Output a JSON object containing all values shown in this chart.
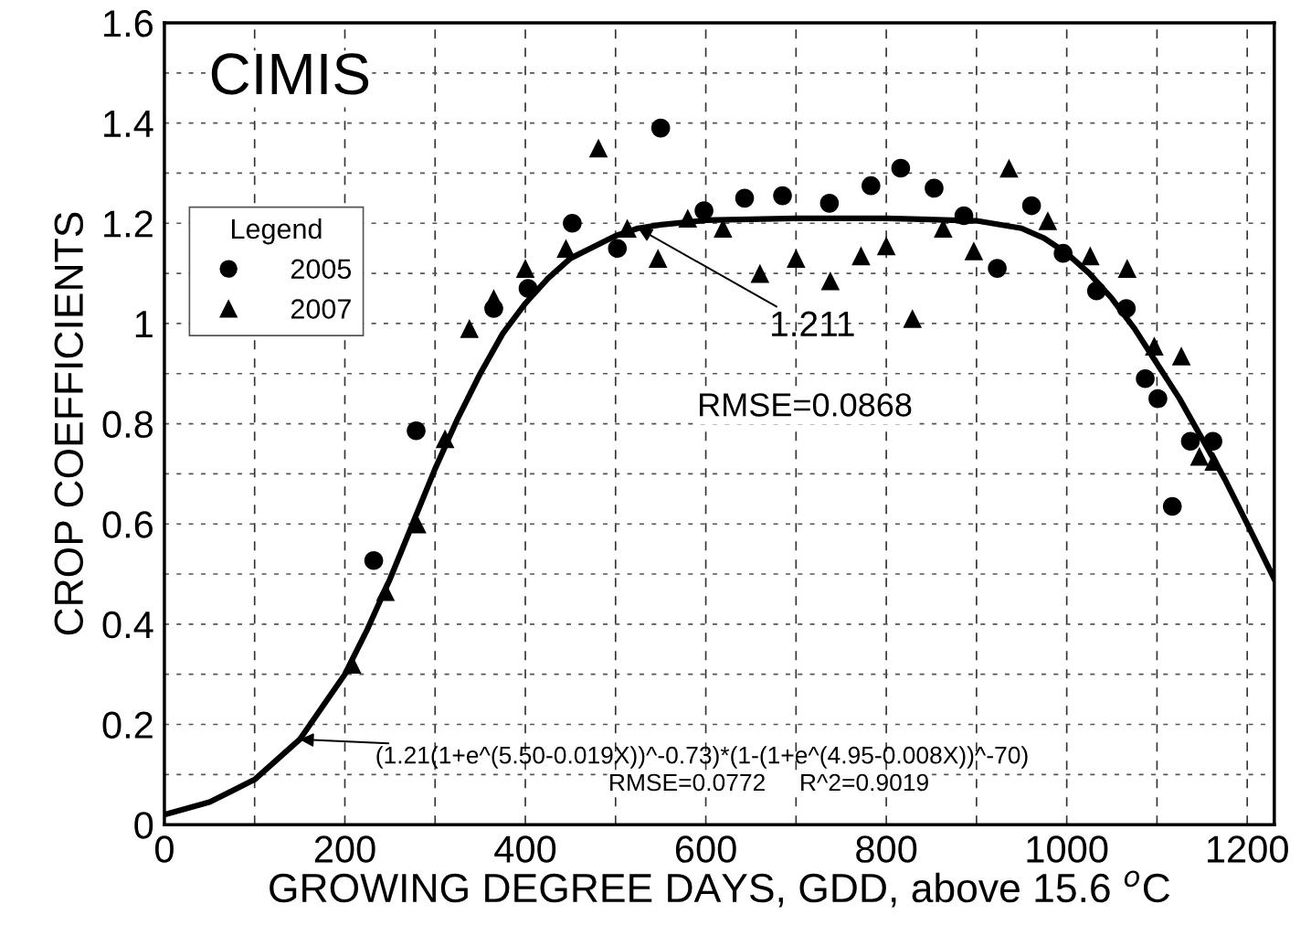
{
  "chart_data": {
    "type": "scatter",
    "xlabel": "GROWING DEGREE DAYS, GDD, above 15.6 $^{o}$C",
    "ylabel": "CROP COEFFICIENTS",
    "legend_title": "Legend",
    "xlim": [
      0,
      1230
    ],
    "ylim": [
      0,
      1.6
    ],
    "xticks": [
      0,
      {
        "value": 100,
        "label": null
      },
      200,
      {
        "value": 300,
        "label": null
      },
      400,
      {
        "value": 500,
        "label": null
      },
      600,
      {
        "value": 700,
        "label": null
      },
      800,
      {
        "value": 900,
        "label": null
      },
      1000,
      {
        "value": 1100,
        "label": null
      },
      1200
    ],
    "yticks": [
      0,
      {
        "value": 0.1,
        "label": null
      },
      0.2,
      {
        "value": 0.3,
        "label": null
      },
      0.4,
      {
        "value": 0.5,
        "label": null
      },
      0.6,
      {
        "value": 0.7,
        "label": null
      },
      0.8,
      {
        "value": 0.9,
        "label": null
      },
      1,
      {
        "value": 1.1,
        "label": null
      },
      1.2,
      {
        "value": 1.3,
        "label": null
      },
      1.4,
      {
        "value": 1.5,
        "label": null
      },
      1.6
    ],
    "grid": true,
    "legend": "left",
    "series": [
      {
        "name": "2005",
        "marker": "circle",
        "color": "#000000",
        "x": [
          232,
          279,
          365,
          403,
          452,
          502,
          550,
          598,
          643,
          685,
          737,
          783,
          816,
          853,
          886,
          923,
          961,
          996,
          1033,
          1066,
          1087,
          1101,
          1117,
          1137,
          1162
        ],
        "values": [
          0.527,
          0.786,
          1.03,
          1.07,
          1.2,
          1.15,
          1.39,
          1.225,
          1.25,
          1.255,
          1.24,
          1.275,
          1.31,
          1.27,
          1.215,
          1.11,
          1.235,
          1.14,
          1.065,
          1.03,
          0.89,
          0.85,
          0.635,
          0.765,
          0.765
        ]
      },
      {
        "name": "2007",
        "marker": "triangle",
        "color": "#000000",
        "x": [
          208,
          245,
          280,
          311,
          338,
          365,
          400,
          445,
          481,
          513,
          547,
          580,
          619,
          660,
          700,
          738,
          772,
          800,
          829,
          863,
          897,
          936,
          979,
          1026,
          1067,
          1097,
          1127,
          1147,
          1163
        ],
        "values": [
          0.32,
          0.465,
          0.6,
          0.77,
          0.99,
          1.05,
          1.11,
          1.15,
          1.35,
          1.19,
          1.13,
          1.21,
          1.19,
          1.1,
          1.13,
          1.085,
          1.135,
          1.155,
          1.01,
          1.19,
          1.145,
          1.31,
          1.205,
          1.135,
          1.11,
          0.955,
          0.935,
          0.735,
          0.725
        ]
      },
      {
        "type": "line",
        "marker": "none",
        "line_style": "solid",
        "color": "#000000",
        "x": [
          0,
          50,
          100,
          150,
          200,
          225,
          250,
          275,
          300,
          325,
          350,
          375,
          400,
          425,
          450,
          500,
          525,
          550,
          600,
          700,
          800,
          900,
          950,
          975,
          1000,
          1025,
          1050,
          1075,
          1100,
          1125,
          1150,
          1175,
          1200,
          1230
        ],
        "values": [
          0.02,
          0.045,
          0.09,
          0.17,
          0.3,
          0.39,
          0.49,
          0.6,
          0.71,
          0.81,
          0.9,
          0.98,
          1.04,
          1.09,
          1.13,
          1.175,
          1.19,
          1.197,
          1.206,
          1.21,
          1.21,
          1.205,
          1.19,
          1.17,
          1.14,
          1.1,
          1.05,
          0.99,
          0.92,
          0.85,
          0.77,
          0.69,
          0.6,
          0.49
        ]
      }
    ],
    "annotations": [
      "CIMIS",
      {
        "text": "1.211",
        "x": 525,
        "y": 1.19
      },
      "RMSE=0.0868",
      {
        "text": "(1.21(1+e^(5.50-0.019X))^-0.73)*(1-(1+e^(4.95-0.008X))^-70)",
        "x": 150,
        "y": 0.17
      },
      "RMSE=0.0772     R^2=0.9019"
    ]
  }
}
